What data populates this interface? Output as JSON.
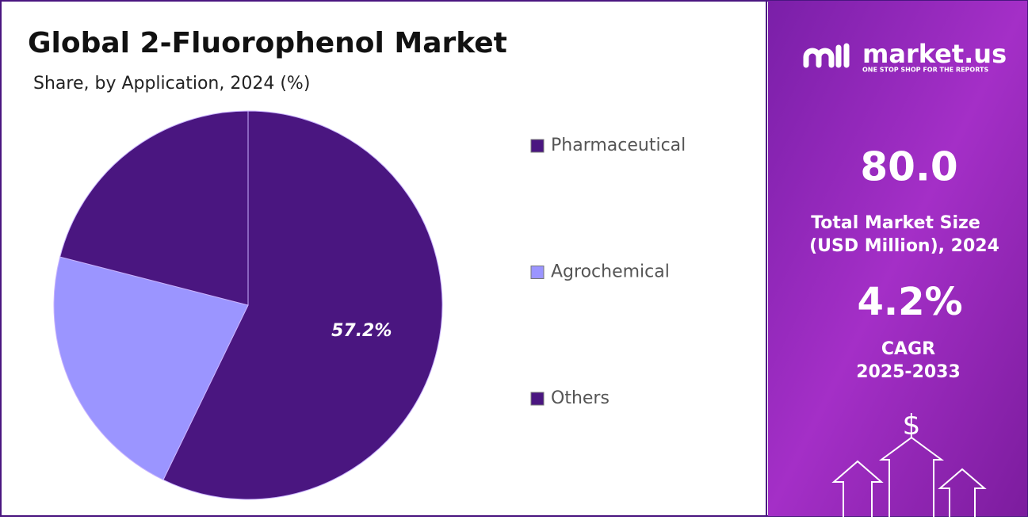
{
  "chart_data": {
    "type": "pie",
    "title": "Global 2-Fluorophenol Market",
    "subtitle": "Share, by Application, 2024 (%)",
    "categories": [
      "Pharmaceutical",
      "Agrochemical",
      "Others"
    ],
    "values": [
      57.2,
      21.8,
      21.0
    ],
    "value_labels": [
      "57.2%",
      null,
      null
    ],
    "colors": [
      "#4a1680",
      "#9b95ff",
      "#4a1680"
    ]
  },
  "panel": {
    "brand": "market.us",
    "tagline": "ONE STOP SHOP FOR THE REPORTS",
    "market_size": "80.0",
    "market_size_label": [
      "Total Market Size",
      "(USD Million), 2024"
    ],
    "cagr": "4.2%",
    "cagr_label": [
      "CAGR",
      "2025-2033"
    ],
    "currency_icon": "$"
  }
}
